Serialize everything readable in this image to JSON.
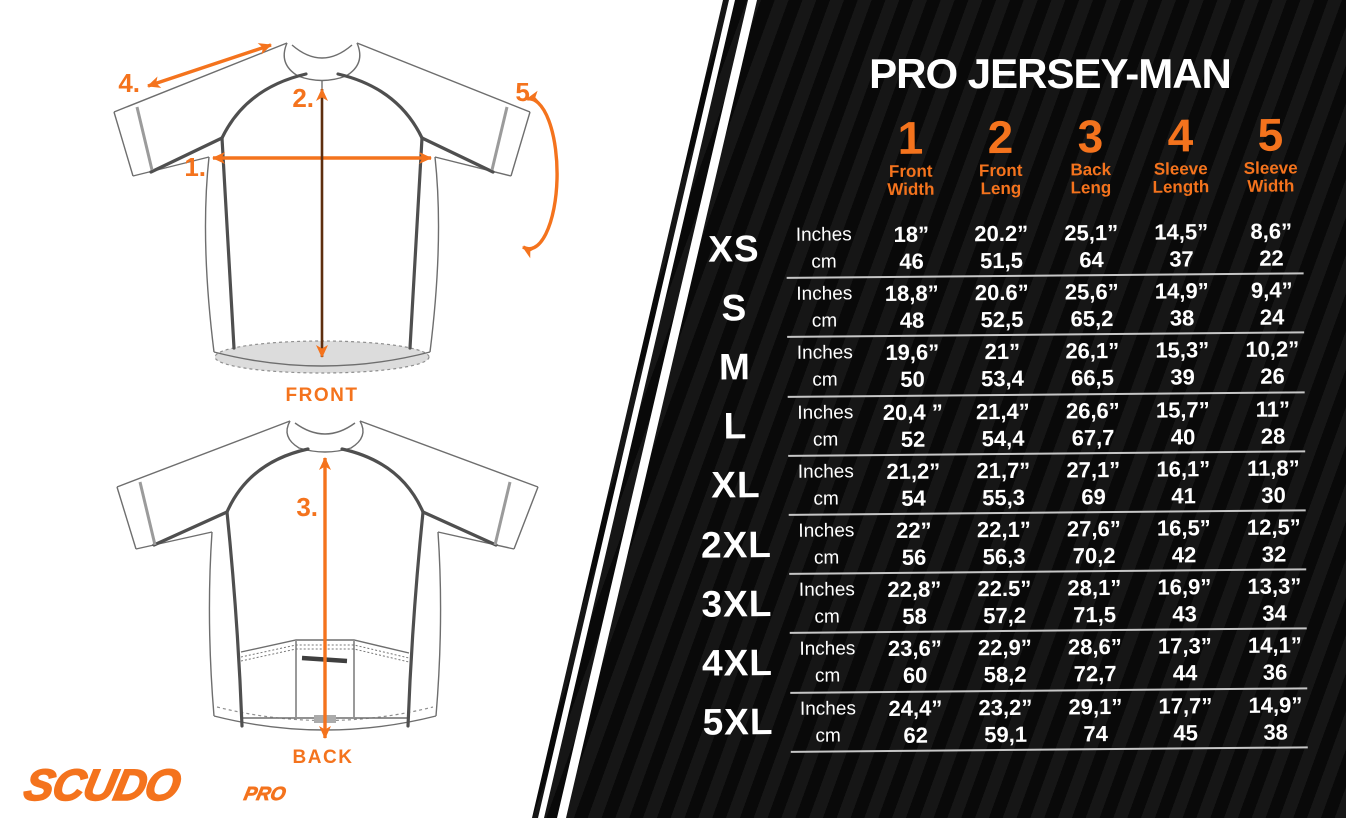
{
  "brand": {
    "logo_main": "SCUDO",
    "logo_sub": "PRO"
  },
  "diagram": {
    "front_label": "FRONT",
    "back_label": "BACK",
    "markers": {
      "m1": "1.",
      "m2": "2.",
      "m3": "3.",
      "m4": "4.",
      "m5": "5."
    }
  },
  "table": {
    "title": "PRO JERSEY-MAN",
    "columns": [
      {
        "num": "1",
        "label_line1": "Front",
        "label_line2": "Width"
      },
      {
        "num": "2",
        "label_line1": "Front",
        "label_line2": "Leng"
      },
      {
        "num": "3",
        "label_line1": "Back",
        "label_line2": "Leng"
      },
      {
        "num": "4",
        "label_line1": "Sleeve",
        "label_line2": "Length"
      },
      {
        "num": "5",
        "label_line1": "Sleeve",
        "label_line2": "Width"
      }
    ],
    "unit_labels": {
      "inches": "Inches",
      "cm": "cm"
    },
    "rows": [
      {
        "size": "XS",
        "inches": [
          "18”",
          "20.2”",
          "25,1”",
          "14,5”",
          "8,6”"
        ],
        "cm": [
          "46",
          "51,5",
          "64",
          "37",
          "22"
        ]
      },
      {
        "size": "S",
        "inches": [
          "18,8”",
          "20.6”",
          "25,6”",
          "14,9”",
          "9,4”"
        ],
        "cm": [
          "48",
          "52,5",
          "65,2",
          "38",
          "24"
        ]
      },
      {
        "size": "M",
        "inches": [
          "19,6”",
          "21”",
          "26,1”",
          "15,3”",
          "10,2”"
        ],
        "cm": [
          "50",
          "53,4",
          "66,5",
          "39",
          "26"
        ]
      },
      {
        "size": "L",
        "inches": [
          "20,4 ”",
          "21,4”",
          "26,6”",
          "15,7”",
          "11”"
        ],
        "cm": [
          "52",
          "54,4",
          "67,7",
          "40",
          "28"
        ]
      },
      {
        "size": "XL",
        "inches": [
          "21,2”",
          "21,7”",
          "27,1”",
          "16,1”",
          "11,8”"
        ],
        "cm": [
          "54",
          "55,3",
          "69",
          "41",
          "30"
        ]
      },
      {
        "size": "2XL",
        "inches": [
          "22”",
          "22,1”",
          "27,6”",
          "16,5”",
          "12,5”"
        ],
        "cm": [
          "56",
          "56,3",
          "70,2",
          "42",
          "32"
        ]
      },
      {
        "size": "3XL",
        "inches": [
          "22,8”",
          "22.5”",
          "28,1”",
          "16,9”",
          "13,3”"
        ],
        "cm": [
          "58",
          "57,2",
          "71,5",
          "43",
          "34"
        ]
      },
      {
        "size": "4XL",
        "inches": [
          "23,6”",
          "22,9”",
          "28,6”",
          "17,3”",
          "14,1”"
        ],
        "cm": [
          "60",
          "58,2",
          "72,7",
          "44",
          "36"
        ]
      },
      {
        "size": "5XL",
        "inches": [
          "24,4”",
          "23,2”",
          "29,1”",
          "17,7”",
          "14,9”"
        ],
        "cm": [
          "62",
          "59,1",
          "74",
          "45",
          "38"
        ]
      }
    ]
  },
  "colors": {
    "accent_orange": "#F4731D",
    "panel_black": "#0a0a0a",
    "panel_stripe": "#161616",
    "separator_gray": "#C6C6C6",
    "arrow2_shaft_brown": "#5E2E0E",
    "text_white": "#FFFFFF"
  }
}
